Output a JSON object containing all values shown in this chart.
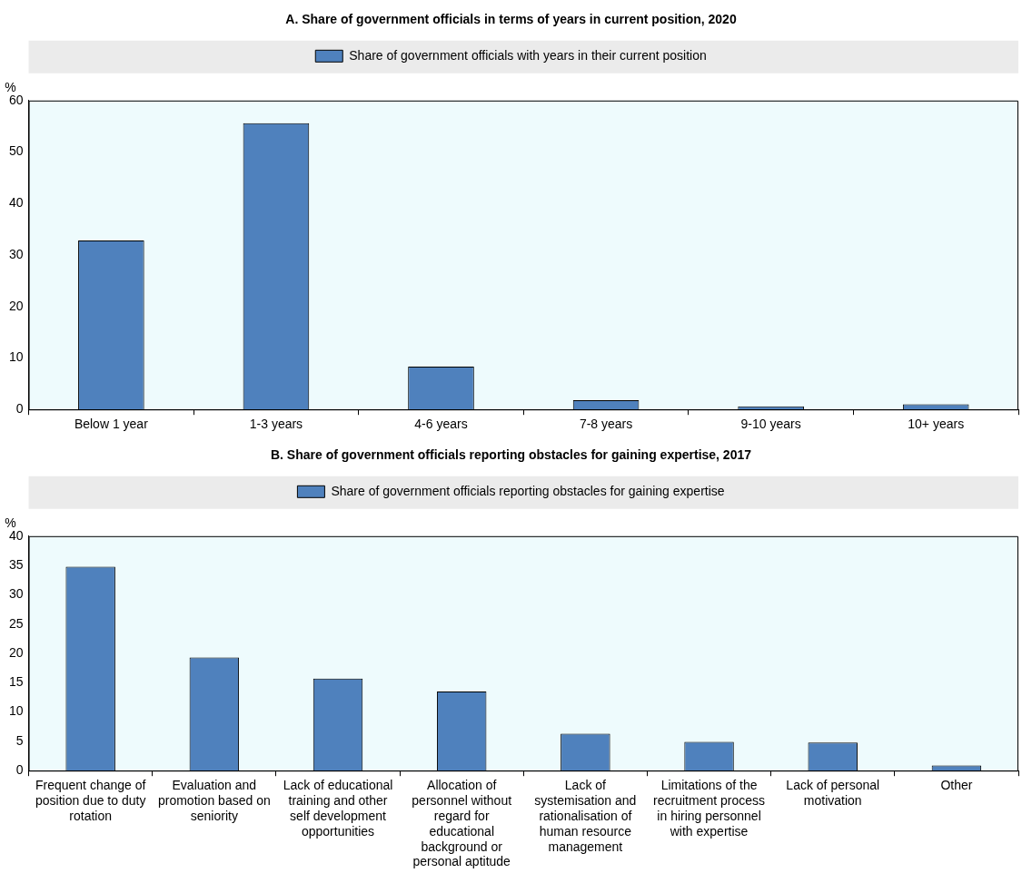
{
  "chart_data": [
    {
      "type": "bar",
      "title": "A. Share of government officials in terms of years in current position, 2020",
      "ylabel": "%",
      "categories": [
        "Below 1 year",
        "1-3 years",
        "4-6 years",
        "7-8 years",
        "9-10 years",
        "10+ years"
      ],
      "series": [
        {
          "name": "Share of government officials with years in their current position",
          "color": "#4f81bd",
          "values": [
            32.8,
            55.6,
            8.3,
            1.8,
            0.6,
            1.0
          ]
        }
      ],
      "ylim": [
        0,
        60
      ],
      "yticks": [
        0,
        10,
        20,
        30,
        40,
        50,
        60
      ],
      "legend": "top",
      "grid": false
    },
    {
      "type": "bar",
      "title": "B. Share of government officials reporting obstacles for gaining expertise, 2017",
      "ylabel": "%",
      "categories": [
        "Frequent change of position due to duty rotation",
        "Evaluation and promotion based on seniority",
        "Lack of educational training and other self development opportunities",
        "Allocation of personnel without regard for educational background or personal aptitude",
        "Lack of systemisation and rationalisation of human resource management",
        "Limitations of the recruitment process in hiring personnel with expertise",
        "Lack of personal motivation",
        "Other"
      ],
      "series": [
        {
          "name": "Share of government officials reporting obstacles for gaining expertise",
          "color": "#4f81bd",
          "values": [
            34.8,
            19.3,
            15.7,
            13.5,
            6.3,
            4.9,
            4.8,
            0.9
          ]
        }
      ],
      "ylim": [
        0,
        40
      ],
      "yticks": [
        0,
        5,
        10,
        15,
        20,
        25,
        30,
        35,
        40
      ],
      "legend": "top",
      "grid": false
    }
  ]
}
